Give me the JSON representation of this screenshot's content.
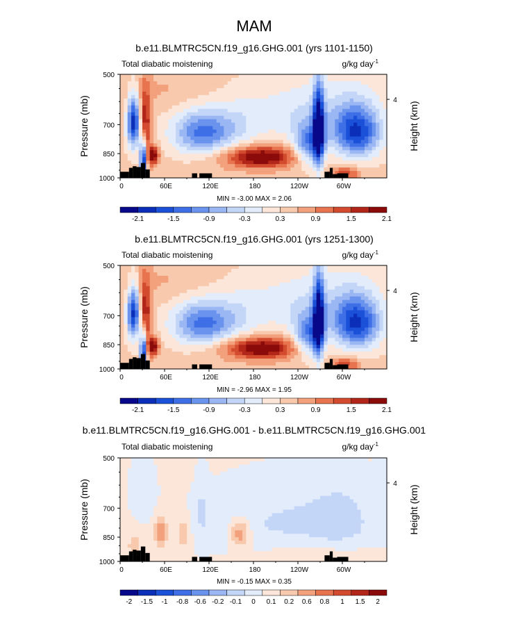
{
  "title": "MAM",
  "colors": {
    "scale": [
      "#08088a",
      "#0b2fb8",
      "#1b50d8",
      "#3e6fe6",
      "#6a93ee",
      "#9ab6f3",
      "#c4d6f7",
      "#e3ecfb",
      "#fbe6d9",
      "#f8c9ad",
      "#f2a17c",
      "#e8734f",
      "#d34b2f",
      "#b2261a",
      "#8a0b0a"
    ],
    "land": "#000000",
    "frame": "#000000"
  },
  "chart_data": [
    {
      "type": "heatmap",
      "subtitle": "b.e11.BLMTRC5CN.f19_g16.GHG.001 (yrs 1101-1150)",
      "left_label": "Total diabatic moistening",
      "units": "g/kg day",
      "units_exp": "-1",
      "ylabel": "Pressure (mb)",
      "ylabel_right": "Height (km)",
      "yticks": [
        "500",
        "700",
        "850",
        "1000"
      ],
      "ytick_values": [
        500,
        700,
        850,
        1000
      ],
      "right_tick": "4",
      "xticks": [
        "0",
        "60E",
        "120E",
        "180",
        "120W",
        "60W"
      ],
      "xtick_values": [
        0,
        60,
        120,
        180,
        240,
        300
      ],
      "xlim": [
        0,
        360
      ],
      "ylim": [
        500,
        1000
      ],
      "stats": "MIN = -3.00  MAX =  2.06",
      "colorbar_labels": [
        "-2.1",
        "-1.5",
        "-0.9",
        "-0.3",
        "0.3",
        "0.9",
        "1.5",
        "2.1"
      ],
      "colorbar_levels": [
        -2.4,
        -2.1,
        -1.8,
        -1.5,
        -1.2,
        -0.9,
        -0.6,
        -0.3,
        0,
        0.3,
        0.6,
        0.9,
        1.2,
        1.5,
        1.8,
        2.1
      ],
      "min": -3.0,
      "max": 2.06,
      "variant": "a"
    },
    {
      "type": "heatmap",
      "subtitle": "b.e11.BLMTRC5CN.f19_g16.GHG.001 (yrs 1251-1300)",
      "left_label": "Total diabatic moistening",
      "units": "g/kg day",
      "units_exp": "-1",
      "ylabel": "Pressure (mb)",
      "ylabel_right": "Height (km)",
      "yticks": [
        "500",
        "700",
        "850",
        "1000"
      ],
      "ytick_values": [
        500,
        700,
        850,
        1000
      ],
      "right_tick": "4",
      "xticks": [
        "0",
        "60E",
        "120E",
        "180",
        "120W",
        "60W"
      ],
      "xtick_values": [
        0,
        60,
        120,
        180,
        240,
        300
      ],
      "xlim": [
        0,
        360
      ],
      "ylim": [
        500,
        1000
      ],
      "stats": "MIN = -2.96  MAX =  1.95",
      "colorbar_labels": [
        "-2.1",
        "-1.5",
        "-0.9",
        "-0.3",
        "0.3",
        "0.9",
        "1.5",
        "2.1"
      ],
      "colorbar_levels": [
        -2.4,
        -2.1,
        -1.8,
        -1.5,
        -1.2,
        -0.9,
        -0.6,
        -0.3,
        0,
        0.3,
        0.6,
        0.9,
        1.2,
        1.5,
        1.8,
        2.1
      ],
      "min": -2.96,
      "max": 1.95,
      "variant": "b"
    },
    {
      "type": "heatmap",
      "subtitle": "b.e11.BLMTRC5CN.f19_g16.GHG.001 - b.e11.BLMTRC5CN.f19_g16.GHG.001",
      "left_label": "Total diabatic moistening",
      "units": "g/kg day",
      "units_exp": "-1",
      "ylabel": "Pressure (mb)",
      "ylabel_right": "Height (km)",
      "yticks": [
        "500",
        "700",
        "850",
        "1000"
      ],
      "ytick_values": [
        500,
        700,
        850,
        1000
      ],
      "right_tick": "4",
      "xticks": [
        "0",
        "60E",
        "120E",
        "180",
        "120W",
        "60W"
      ],
      "xtick_values": [
        0,
        60,
        120,
        180,
        240,
        300
      ],
      "xlim": [
        0,
        360
      ],
      "ylim": [
        500,
        1000
      ],
      "stats": "MIN = -0.15  MAX =  0.35",
      "colorbar_labels": [
        "-2",
        "-1.5",
        "-1",
        "-0.8",
        "-0.6",
        "-0.2",
        "-0.1",
        "0",
        "0.1",
        "0.2",
        "0.6",
        "0.8",
        "1",
        "1.5",
        "2"
      ],
      "colorbar_levels": [
        -2,
        -1.5,
        -1,
        -0.8,
        -0.6,
        -0.2,
        -0.1,
        0,
        0.1,
        0.2,
        0.6,
        0.8,
        1,
        1.5,
        2
      ],
      "min": -0.15,
      "max": 0.35,
      "variant": "diff"
    }
  ]
}
